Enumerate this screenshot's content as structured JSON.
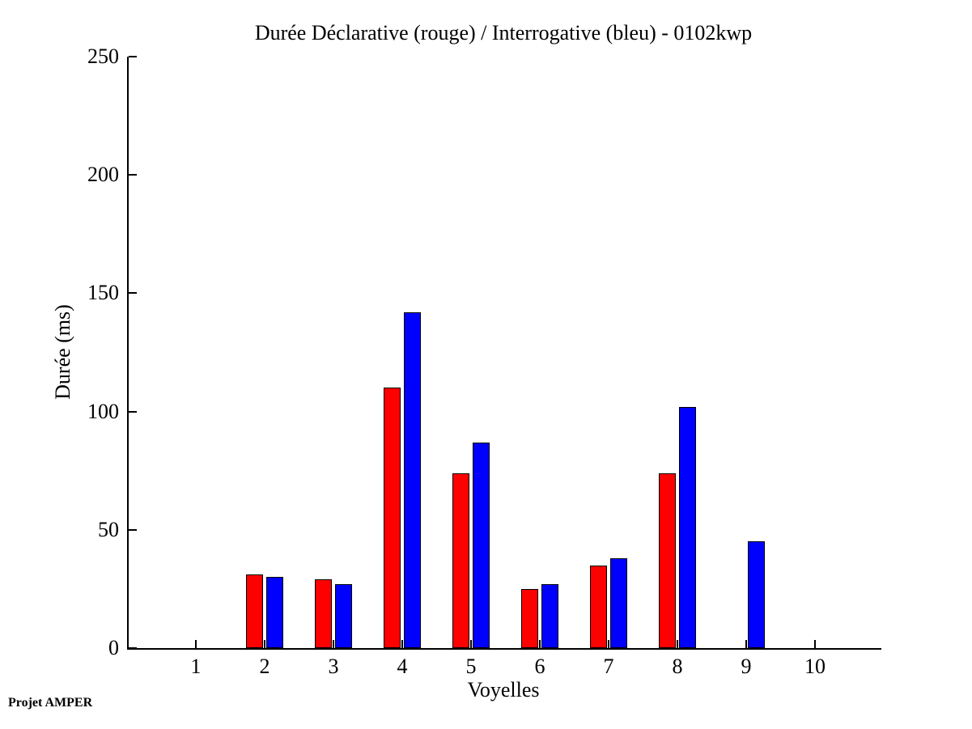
{
  "title": "Durée Déclarative (rouge) / Interrogative (bleu) - 0102kwp",
  "footer": "Projet AMPER",
  "colors": {
    "declarative_red": "#ff0000",
    "interrogative_blue": "#0000ff",
    "axis": "#000000",
    "background": "#ffffff"
  },
  "chart_data": {
    "type": "bar",
    "title": "Durée Déclarative (rouge) / Interrogative (bleu) - 0102kwp",
    "xlabel": "Voyelles",
    "ylabel": "Durée (ms)",
    "categories": [
      1,
      2,
      3,
      4,
      5,
      6,
      7,
      8,
      9,
      10
    ],
    "series": [
      {
        "name": "Déclarative (rouge)",
        "color": "#ff0000",
        "values": [
          0,
          31,
          29,
          110,
          74,
          25,
          35,
          74,
          0,
          0
        ]
      },
      {
        "name": "Interrogative (bleu)",
        "color": "#0000ff",
        "values": [
          0,
          30,
          27,
          142,
          87,
          27,
          38,
          102,
          45,
          0
        ]
      }
    ],
    "ylim": [
      0,
      250
    ],
    "yticks": [
      0,
      50,
      100,
      150,
      200,
      250
    ],
    "grid": false,
    "legend_position": "none",
    "box": false
  }
}
